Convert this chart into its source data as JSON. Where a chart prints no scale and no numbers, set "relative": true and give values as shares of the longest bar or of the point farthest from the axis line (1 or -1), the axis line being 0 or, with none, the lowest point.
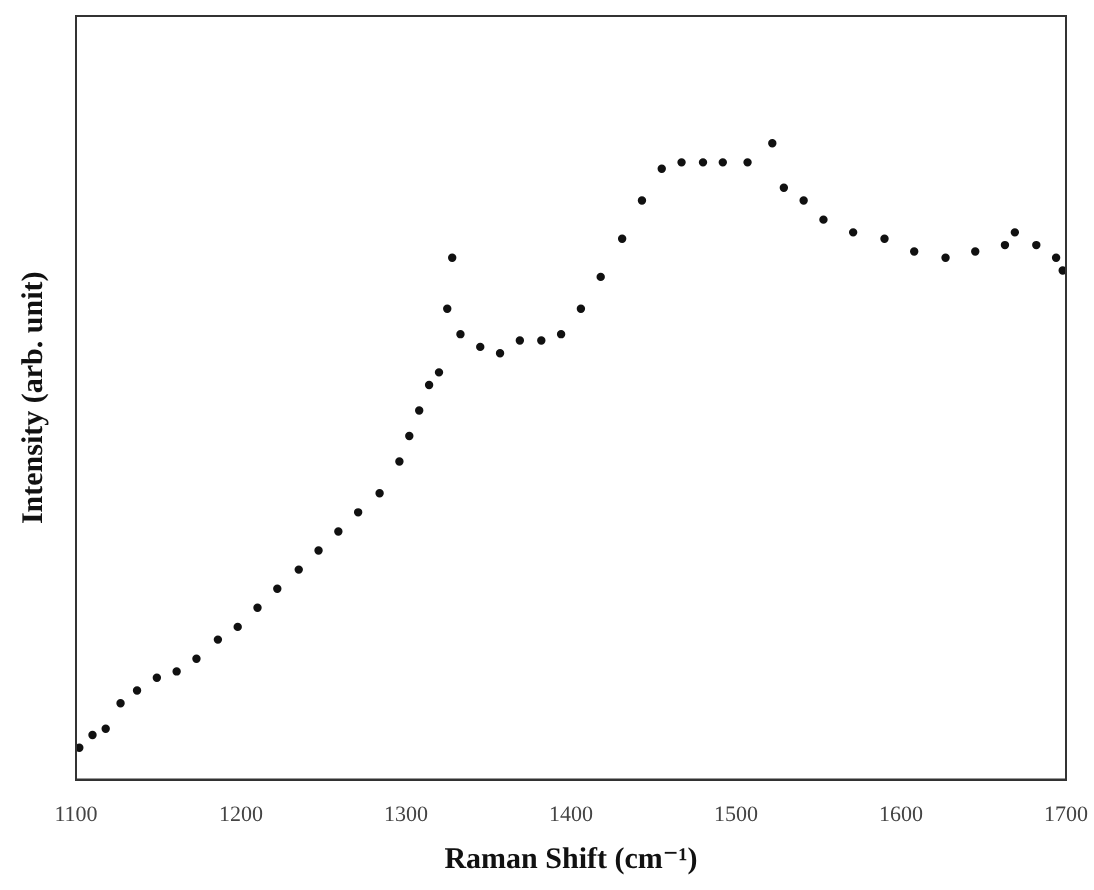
{
  "chart_data": {
    "type": "scatter",
    "xlabel": "Raman Shift (cm⁻¹)",
    "ylabel": "Intensity (arb. unit)",
    "relative": true,
    "tick_labels": "x",
    "marker": "circle",
    "grid": false,
    "legend": false,
    "xlim": [
      1100,
      1700
    ],
    "xticks": [
      1100,
      1200,
      1300,
      1400,
      1500,
      1600,
      1700
    ],
    "series": [
      {
        "color": "#111111",
        "x": [
          1102,
          1110,
          1118,
          1127,
          1137,
          1149,
          1161,
          1173,
          1186,
          1198,
          1210,
          1222,
          1235,
          1247,
          1259,
          1271,
          1284,
          1296,
          1302,
          1308,
          1314,
          1320,
          1325,
          1328,
          1333,
          1345,
          1357,
          1369,
          1382,
          1394,
          1406,
          1418,
          1431,
          1443,
          1455,
          1467,
          1480,
          1492,
          1507,
          1522,
          1529,
          1541,
          1553,
          1571,
          1590,
          1608,
          1627,
          1645,
          1663,
          1669,
          1682,
          1694,
          1698
        ],
        "values": [
          0.05,
          0.07,
          0.08,
          0.12,
          0.14,
          0.16,
          0.17,
          0.19,
          0.22,
          0.24,
          0.27,
          0.3,
          0.33,
          0.36,
          0.39,
          0.42,
          0.45,
          0.5,
          0.54,
          0.58,
          0.62,
          0.64,
          0.74,
          0.82,
          0.7,
          0.68,
          0.67,
          0.69,
          0.69,
          0.7,
          0.74,
          0.79,
          0.85,
          0.91,
          0.96,
          0.97,
          0.97,
          0.97,
          0.97,
          1.0,
          0.93,
          0.91,
          0.88,
          0.86,
          0.85,
          0.83,
          0.82,
          0.83,
          0.84,
          0.86,
          0.84,
          0.82,
          0.8
        ]
      }
    ]
  }
}
